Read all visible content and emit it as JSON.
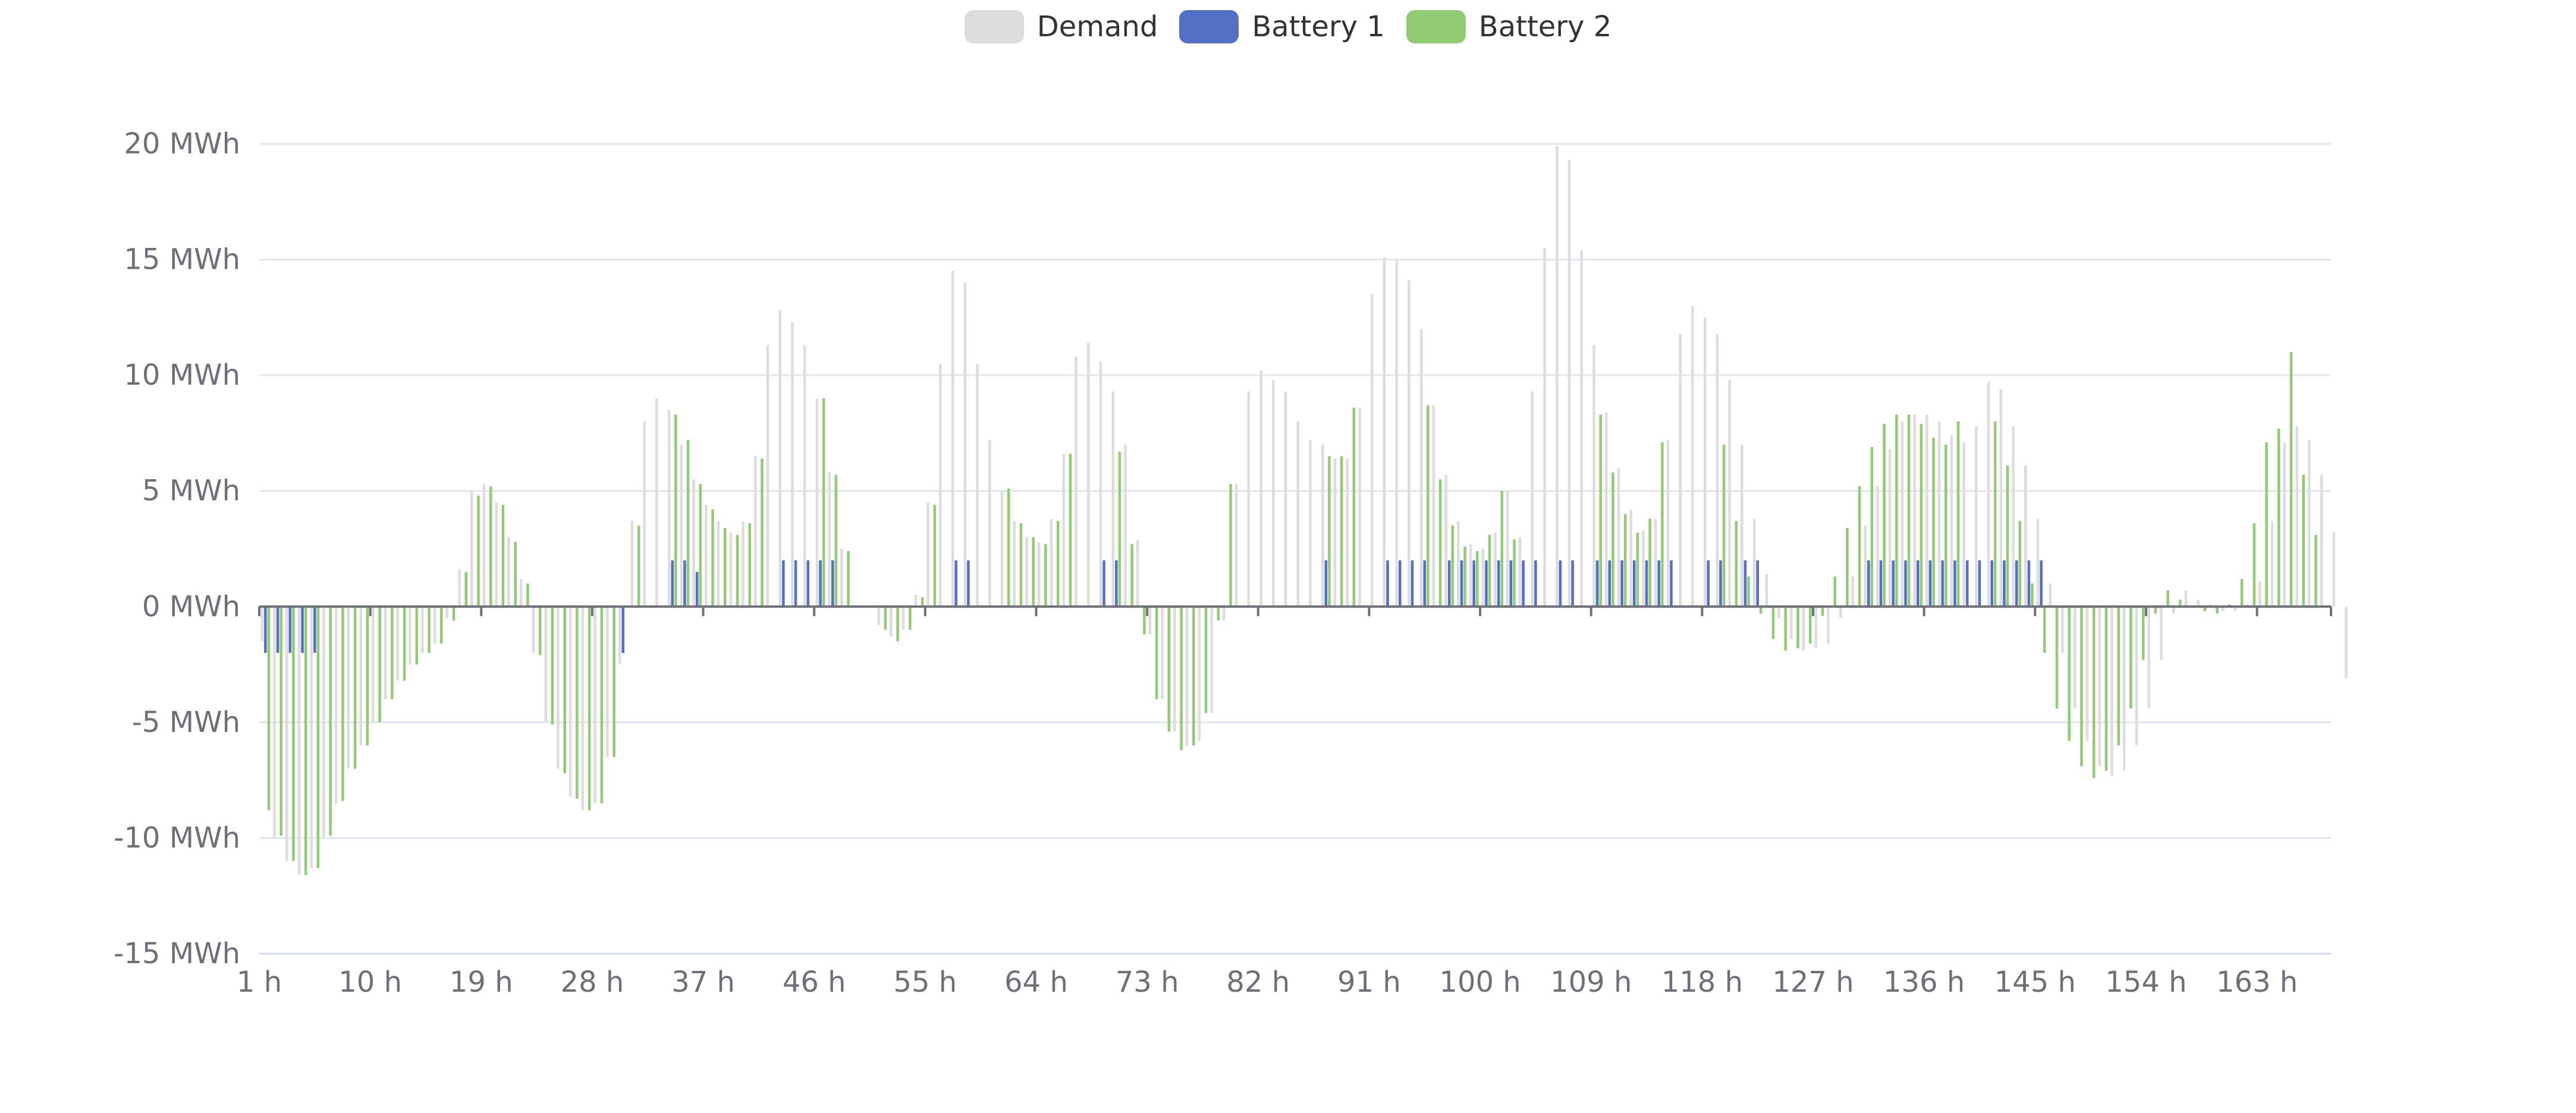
{
  "legend": [
    {
      "name": "Demand",
      "color": "#dddddd"
    },
    {
      "name": "Battery 1",
      "color": "#5470c6"
    },
    {
      "name": "Battery 2",
      "color": "#91cc75"
    }
  ],
  "chart_data": {
    "type": "bar",
    "x_tick_labels": [
      "1 h",
      "10 h",
      "19 h",
      "28 h",
      "37 h",
      "46 h",
      "55 h",
      "64 h",
      "73 h",
      "82 h",
      "91 h",
      "100 h",
      "109 h",
      "118 h",
      "127 h",
      "136 h",
      "145 h",
      "154 h",
      "163 h"
    ],
    "y_tick_labels": [
      "-15 MWh",
      "-10 MWh",
      "-5 MWh",
      "0 MWh",
      "5 MWh",
      "10 MWh",
      "15 MWh",
      "20 MWh"
    ],
    "y_ticks": [
      -15,
      -10,
      -5,
      0,
      5,
      10,
      15,
      20
    ],
    "ylim": [
      -15,
      20
    ],
    "unit": "MWh",
    "x_count": 168,
    "x_label_interval": 9,
    "grid": true,
    "legend_position": "top-center",
    "series": [
      {
        "name": "Demand",
        "color": "#dddddd",
        "values": [
          -1.5,
          -10,
          -11,
          -11.6,
          -11.3,
          -10,
          -8.5,
          -7,
          -6,
          -5,
          -4,
          -3.2,
          -2.5,
          -2,
          -1.6,
          -0.5,
          1.6,
          5,
          5.3,
          4.5,
          3,
          1.2,
          -2,
          -5,
          -7,
          -8.2,
          -8.8,
          -8.5,
          -6.5,
          -2.5,
          3.7,
          8,
          9,
          8.5,
          7,
          5.5,
          4.4,
          3.7,
          3.2,
          3.7,
          6.5,
          11.3,
          12.8,
          12.3,
          11.3,
          9,
          5.8,
          2.5,
          0,
          0,
          -0.8,
          -1.3,
          -1,
          0.5,
          4.5,
          10.5,
          14.5,
          14,
          10.5,
          7.2,
          5,
          3.7,
          3,
          2.8,
          3.8,
          6.6,
          10.8,
          11.4,
          10.6,
          9.3,
          7,
          2.9,
          -1.2,
          -4,
          -5.4,
          -6,
          -5.8,
          -4.6,
          -0.6,
          5.3,
          9.3,
          10.2,
          9.8,
          9.3,
          8,
          7.2,
          7,
          6.4,
          6.4,
          8.6,
          13.5,
          15.1,
          15,
          14.1,
          12,
          8.7,
          5.7,
          3.7,
          2.7,
          2.5,
          3.2,
          5,
          3,
          9.3,
          15.5,
          19.9,
          19.3,
          15.4,
          11.3,
          8.4,
          6,
          4.2,
          3.3,
          3.8,
          7.2,
          11.8,
          13,
          12.5,
          11.8,
          9.8,
          7,
          3.8,
          1.4,
          -0.5,
          -1.4,
          -1.9,
          -1.8,
          -1.6,
          -0.5,
          1.3,
          3.5,
          5.2,
          6.8,
          8,
          8.3,
          8.3,
          8,
          7.4,
          7.1,
          7.8,
          9.7,
          9.4,
          7.8,
          6.1,
          3.8,
          1,
          -2,
          -4.4,
          -5.8,
          -6.9,
          -7.3,
          -7.1,
          -6,
          -4.4,
          -2.3,
          -0.3,
          0.7,
          0.3,
          0.1,
          -0.2,
          -0.2,
          0.1,
          1.1,
          3.7,
          7.1,
          7.8,
          7.2,
          5.7,
          3.2,
          -3.1
        ]
      },
      {
        "name": "Battery 1",
        "color": "#5470c6",
        "values": [
          -2,
          -2,
          -2,
          -2,
          -2,
          0,
          0,
          0,
          0,
          0,
          0,
          0,
          0,
          0,
          0,
          0,
          0,
          0,
          0,
          0,
          0,
          0,
          0,
          0,
          0,
          0,
          0,
          0,
          0,
          -2,
          0,
          0,
          0,
          2,
          2,
          1.5,
          0,
          0,
          0,
          0,
          0,
          0,
          2,
          2,
          2,
          2,
          2,
          0,
          0,
          0,
          0,
          0,
          0,
          0,
          0,
          0,
          2,
          2,
          0,
          0,
          0,
          0,
          0,
          0,
          0,
          0,
          0,
          0,
          2,
          2,
          0,
          0,
          0,
          0,
          0,
          0,
          0,
          0,
          0,
          0,
          0,
          0,
          0,
          0,
          0,
          0,
          2,
          0,
          0,
          0,
          0,
          2,
          2,
          2,
          2,
          0,
          2,
          2,
          2,
          2,
          2,
          2,
          2,
          2,
          0,
          2,
          2,
          0,
          2,
          2,
          2,
          2,
          2,
          2,
          2,
          0,
          0,
          2,
          2,
          0,
          2,
          2,
          0,
          0,
          0,
          0,
          0,
          0,
          0,
          0,
          2,
          2,
          2,
          2,
          2,
          2,
          2,
          2,
          2,
          2,
          2,
          2,
          2,
          2,
          2,
          0,
          0,
          0,
          0,
          0,
          0,
          0,
          0,
          0,
          0,
          0,
          0,
          0,
          0,
          0,
          0,
          0,
          0,
          0,
          0,
          0,
          0,
          0,
          0,
          0,
          0
        ]
      },
      {
        "name": "Battery 2",
        "color": "#91cc75",
        "values": [
          -8.8,
          -9.9,
          -11,
          -11.6,
          -11.3,
          -9.9,
          -8.4,
          -7,
          -6,
          -5,
          -4,
          -3.2,
          -2.5,
          -2,
          -1.6,
          -0.6,
          1.5,
          4.8,
          5.2,
          4.4,
          2.8,
          1,
          -2.1,
          -5.1,
          -7.2,
          -8.3,
          -8.8,
          -8.5,
          -6.5,
          0,
          3.5,
          0,
          0,
          8.3,
          7.2,
          5.3,
          4.2,
          3.4,
          3.1,
          3.6,
          6.4,
          0,
          0,
          0,
          0,
          9,
          5.7,
          2.4,
          0,
          0,
          -1,
          -1.5,
          -1,
          0.4,
          4.4,
          0,
          0,
          0,
          0,
          0,
          5.1,
          3.6,
          3,
          2.7,
          3.7,
          6.6,
          0,
          0,
          0,
          6.7,
          2.7,
          -1.2,
          -4,
          -5.4,
          -6.2,
          -6,
          -4.6,
          -0.6,
          5.3,
          0,
          0,
          0,
          0,
          0,
          0,
          0,
          6.5,
          6.5,
          8.6,
          0,
          0,
          0,
          0,
          0,
          8.7,
          5.5,
          3.5,
          2.6,
          2.4,
          3.1,
          5,
          2.9,
          0,
          0,
          0,
          0,
          0,
          0,
          8.3,
          5.8,
          4,
          3.2,
          3.8,
          7.1,
          0,
          0,
          0,
          0,
          7,
          3.7,
          1.3,
          -0.3,
          -1.4,
          -1.9,
          -1.8,
          -1.6,
          -0.4,
          1.3,
          3.4,
          5.2,
          6.9,
          7.9,
          8.3,
          8.3,
          7.9,
          7.3,
          7,
          8,
          0,
          0,
          8,
          6.1,
          3.7,
          1,
          -2,
          -4.4,
          -5.8,
          -6.9,
          -7.4,
          -7.1,
          -6,
          -4.4,
          -2.3,
          -0.3,
          0.7,
          0.3,
          0,
          -0.2,
          -0.3,
          0.1,
          1.2,
          3.6,
          7.1,
          7.7,
          11,
          5.7,
          3.1,
          0
        ]
      }
    ]
  }
}
